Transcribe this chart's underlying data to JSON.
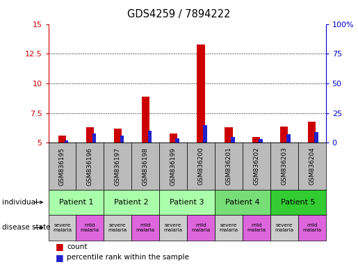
{
  "title": "GDS4259 / 7894222",
  "samples": [
    "GSM836195",
    "GSM836196",
    "GSM836197",
    "GSM836198",
    "GSM836199",
    "GSM836200",
    "GSM836201",
    "GSM836202",
    "GSM836203",
    "GSM836204"
  ],
  "count_values": [
    5.6,
    6.3,
    6.2,
    8.9,
    5.8,
    13.3,
    6.3,
    5.5,
    6.4,
    6.8
  ],
  "percentile_values": [
    2,
    8,
    6,
    10,
    4,
    15,
    5,
    3,
    7,
    9
  ],
  "ylim_left": [
    5,
    15
  ],
  "ylim_right": [
    0,
    100
  ],
  "yticks_left": [
    5,
    7.5,
    10,
    12.5,
    15
  ],
  "yticks_right": [
    0,
    25,
    50,
    75,
    100
  ],
  "ytick_labels_left": [
    "5",
    "7.5",
    "10",
    "12.5",
    "15"
  ],
  "ytick_labels_right": [
    "0",
    "25",
    "50",
    "75",
    "100%"
  ],
  "bar_color_red": "#cc0000",
  "bar_color_blue": "#2222cc",
  "patients": [
    {
      "label": "Patient 1",
      "indices": [
        0,
        1
      ],
      "color": "#aaffaa"
    },
    {
      "label": "Patient 2",
      "indices": [
        2,
        3
      ],
      "color": "#aaffaa"
    },
    {
      "label": "Patient 3",
      "indices": [
        4,
        5
      ],
      "color": "#aaffaa"
    },
    {
      "label": "Patient 4",
      "indices": [
        6,
        7
      ],
      "color": "#77dd77"
    },
    {
      "label": "Patient 5",
      "indices": [
        8,
        9
      ],
      "color": "#33cc33"
    }
  ],
  "disease_states": [
    {
      "label": "severe\nmalaria",
      "color": "#cccccc"
    },
    {
      "label": "mild\nmalaria",
      "color": "#dd66dd"
    },
    {
      "label": "severe\nmalaria",
      "color": "#cccccc"
    },
    {
      "label": "mild\nmalaria",
      "color": "#dd66dd"
    },
    {
      "label": "severe\nmalaria",
      "color": "#cccccc"
    },
    {
      "label": "mild\nmalaria",
      "color": "#dd66dd"
    },
    {
      "label": "severe\nmalaria",
      "color": "#cccccc"
    },
    {
      "label": "mild\nmalaria",
      "color": "#dd66dd"
    },
    {
      "label": "severe\nmalaria",
      "color": "#cccccc"
    },
    {
      "label": "mild\nmalaria",
      "color": "#dd66dd"
    }
  ],
  "sample_bg_color": "#bbbbbb",
  "left_axis_color": "#cc0000",
  "right_axis_color": "#0000cc"
}
